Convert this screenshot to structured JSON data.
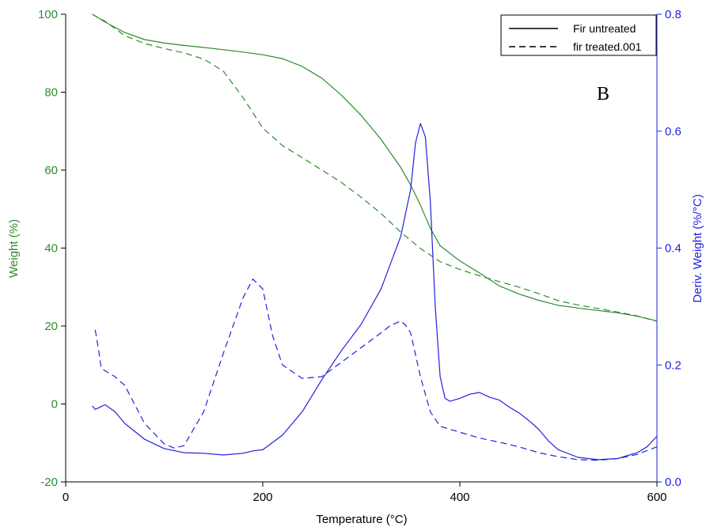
{
  "chart_data": {
    "type": "line",
    "panel_label": "B",
    "xlabel": "Temperature (°C)",
    "ylabel_left": "Weight (%)",
    "ylabel_right": "Deriv. Weight (%/°C)",
    "xlim": [
      0,
      600
    ],
    "ylim_left": [
      -20,
      100
    ],
    "ylim_right": [
      0,
      0.8
    ],
    "x_ticks": [
      "0",
      "200",
      "400",
      "600"
    ],
    "y_left_ticks": [
      "100",
      "80",
      "60",
      "40",
      "20",
      "0",
      "-20"
    ],
    "y_right_ticks": [
      "0.8",
      "0.6",
      "0.4",
      "0.2",
      "0.0"
    ],
    "legend": {
      "position": "top-right",
      "entries": [
        "Fir untreated",
        "fir treated.001"
      ]
    },
    "grid": false,
    "colors": {
      "weight": "#2e8b2e",
      "deriv": "#2222dd",
      "axes": "#000000"
    },
    "series": [
      {
        "name": "Fir untreated",
        "quantity": "weight",
        "axis": "left",
        "style": "solid",
        "x": [
          27,
          40,
          60,
          80,
          100,
          120,
          150,
          180,
          200,
          220,
          240,
          260,
          280,
          300,
          320,
          340,
          350,
          360,
          370,
          380,
          400,
          420,
          440,
          460,
          480,
          500,
          520,
          540,
          560,
          580,
          600
        ],
        "y": [
          100,
          98,
          95.3,
          93.5,
          92.6,
          92,
          91.2,
          90.3,
          89.6,
          88.6,
          86.6,
          83.6,
          79.2,
          74,
          67.9,
          60.7,
          56.2,
          51,
          45.1,
          40.6,
          36.7,
          33.6,
          30.3,
          28.2,
          26.6,
          25.3,
          24.6,
          24,
          23.4,
          22.5,
          21.3
        ]
      },
      {
        "name": "fir treated.001",
        "quantity": "weight",
        "axis": "left",
        "style": "dashed",
        "x": [
          27,
          40,
          60,
          80,
          100,
          120,
          140,
          160,
          180,
          200,
          220,
          240,
          260,
          280,
          300,
          320,
          340,
          360,
          380,
          400,
          420,
          440,
          460,
          480,
          500,
          520,
          540,
          560,
          580,
          600
        ],
        "y": [
          100,
          98.2,
          94.5,
          92.5,
          91.2,
          90.1,
          88.5,
          85.4,
          78.6,
          70.8,
          66.3,
          63.2,
          60,
          56.8,
          53,
          48.9,
          44.1,
          39.9,
          36.5,
          34.5,
          32.9,
          31.4,
          30,
          28.3,
          26.5,
          25.4,
          24.5,
          23.6,
          22.6,
          21.2
        ]
      },
      {
        "name": "Fir untreated",
        "quantity": "derivative",
        "axis": "right",
        "style": "solid",
        "x": [
          27,
          30,
          35,
          40,
          50,
          60,
          80,
          100,
          120,
          140,
          160,
          180,
          190,
          200,
          220,
          240,
          260,
          280,
          300,
          320,
          340,
          350,
          355,
          360,
          365,
          370,
          375,
          380,
          385,
          390,
          400,
          410,
          420,
          430,
          440,
          450,
          460,
          470,
          480,
          490,
          500,
          520,
          540,
          560,
          580,
          590,
          600
        ],
        "y": [
          0.13,
          0.124,
          0.128,
          0.132,
          0.12,
          0.1,
          0.073,
          0.057,
          0.05,
          0.049,
          0.046,
          0.049,
          0.053,
          0.055,
          0.08,
          0.12,
          0.175,
          0.225,
          0.27,
          0.33,
          0.42,
          0.5,
          0.58,
          0.613,
          0.59,
          0.48,
          0.3,
          0.18,
          0.143,
          0.138,
          0.143,
          0.15,
          0.153,
          0.145,
          0.14,
          0.128,
          0.118,
          0.105,
          0.09,
          0.07,
          0.055,
          0.042,
          0.038,
          0.04,
          0.05,
          0.06,
          0.078
        ]
      },
      {
        "name": "fir treated.001",
        "quantity": "derivative",
        "axis": "right",
        "style": "dashed",
        "x": [
          30,
          33,
          36,
          40,
          50,
          60,
          80,
          100,
          110,
          120,
          140,
          160,
          180,
          190,
          200,
          210,
          220,
          240,
          260,
          280,
          300,
          320,
          330,
          340,
          345,
          350,
          360,
          370,
          380,
          400,
          420,
          440,
          460,
          480,
          500,
          520,
          540,
          560,
          580,
          600
        ],
        "y": [
          0.26,
          0.23,
          0.195,
          0.19,
          0.18,
          0.165,
          0.1,
          0.065,
          0.058,
          0.062,
          0.12,
          0.22,
          0.315,
          0.347,
          0.33,
          0.25,
          0.2,
          0.177,
          0.18,
          0.205,
          0.23,
          0.255,
          0.268,
          0.275,
          0.268,
          0.255,
          0.18,
          0.12,
          0.095,
          0.085,
          0.075,
          0.068,
          0.06,
          0.05,
          0.043,
          0.038,
          0.037,
          0.04,
          0.047,
          0.06
        ]
      }
    ]
  }
}
